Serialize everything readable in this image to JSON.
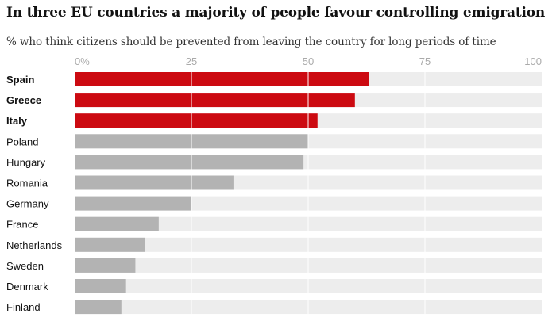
{
  "chart_data": {
    "type": "bar",
    "orientation": "horizontal",
    "title": "In three EU countries a majority of people favour controlling emigration",
    "subtitle": "% who think citizens should be prevented from leaving the country for long periods of time",
    "xlim": [
      0,
      100
    ],
    "x_ticks": [
      {
        "value": 0,
        "label": "0%"
      },
      {
        "value": 25,
        "label": "25"
      },
      {
        "value": 50,
        "label": "50"
      },
      {
        "value": 75,
        "label": "75"
      },
      {
        "value": 100,
        "label": "100"
      }
    ],
    "grid": true,
    "categories": [
      "Spain",
      "Greece",
      "Italy",
      "Poland",
      "Hungary",
      "Romania",
      "Germany",
      "France",
      "Netherlands",
      "Sweden",
      "Denmark",
      "Finland"
    ],
    "values": [
      63,
      60,
      52,
      50,
      49,
      34,
      25,
      18,
      15,
      13,
      11,
      10
    ],
    "highlighted": [
      "Spain",
      "Greece",
      "Italy"
    ],
    "colors": {
      "highlight": "#cc0a11",
      "default": "#b3b3b3",
      "track": "#ededed",
      "grid": "#ffffff"
    }
  }
}
